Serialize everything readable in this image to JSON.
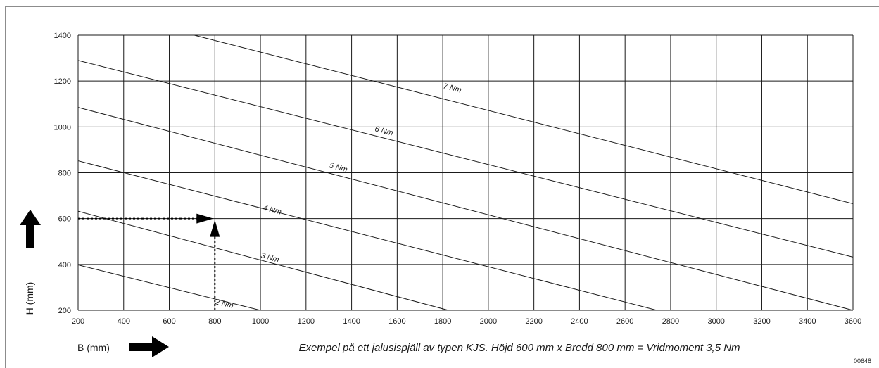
{
  "chart_data": {
    "type": "line",
    "title": "",
    "xlabel": "B (mm)",
    "ylabel": "H (mm)",
    "xlim": [
      200,
      3600
    ],
    "ylim": [
      200,
      1400
    ],
    "x_ticks": [
      200,
      400,
      600,
      800,
      1000,
      1200,
      1400,
      1600,
      1800,
      2000,
      2200,
      2400,
      2600,
      2800,
      3000,
      3200,
      3400,
      3600
    ],
    "y_ticks": [
      200,
      400,
      600,
      800,
      1000,
      1200,
      1400
    ],
    "grid": true,
    "series": [
      {
        "name": "2 Nm",
        "points": [
          [
            200,
            398
          ],
          [
            1000,
            200
          ]
        ],
        "label_at": [
          800,
          228
        ]
      },
      {
        "name": "3 Nm",
        "points": [
          [
            200,
            632
          ],
          [
            1825,
            200
          ]
        ],
        "label_at": [
          1000,
          430
        ]
      },
      {
        "name": "4 Nm",
        "points": [
          [
            200,
            852
          ],
          [
            2740,
            200
          ]
        ],
        "label_at": [
          1010,
          638
        ]
      },
      {
        "name": "5 Nm",
        "points": [
          [
            200,
            1085
          ],
          [
            3600,
            200
          ]
        ],
        "label_at": [
          1300,
          823
        ]
      },
      {
        "name": "6 Nm",
        "points": [
          [
            200,
            1290
          ],
          [
            3600,
            432
          ]
        ],
        "label_at": [
          1500,
          982
        ]
      },
      {
        "name": "7 Nm",
        "points": [
          [
            710,
            1400
          ],
          [
            3600,
            665
          ]
        ],
        "label_at": [
          1800,
          1169
        ]
      }
    ],
    "example": {
      "x": 800,
      "y": 600
    },
    "caption": "Exempel på ett jalusispjäll av typen KJS. Höjd 600 mm x Bredd 800 mm = Vridmoment 3,5 Nm",
    "code": "00648",
    "colors": {
      "line": "#1a1a1a",
      "grid": "#1a1a1a",
      "background": "#ffffff"
    }
  }
}
